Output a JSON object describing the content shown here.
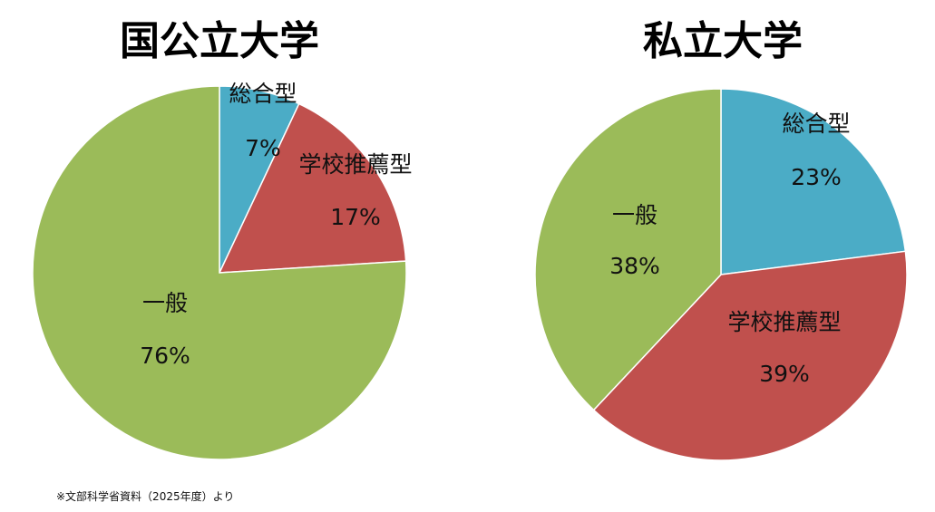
{
  "chart_data": [
    {
      "type": "pie",
      "title": "国公立大学",
      "categories": [
        "総合型",
        "学校推薦型",
        "一般"
      ],
      "values": [
        7,
        17,
        76
      ],
      "labels": [
        "7%",
        "17%",
        "76%"
      ],
      "colors": [
        "#4BACC6",
        "#C0504D",
        "#9BBB59"
      ]
    },
    {
      "type": "pie",
      "title": "私立大学",
      "categories": [
        "総合型",
        "学校推薦型",
        "一般"
      ],
      "values": [
        23,
        39,
        38
      ],
      "labels": [
        "23%",
        "39%",
        "38%"
      ],
      "colors": [
        "#4BACC6",
        "#C0504D",
        "#9BBB59"
      ]
    }
  ],
  "footnote": "※文部科学省資料（2025年度）より"
}
